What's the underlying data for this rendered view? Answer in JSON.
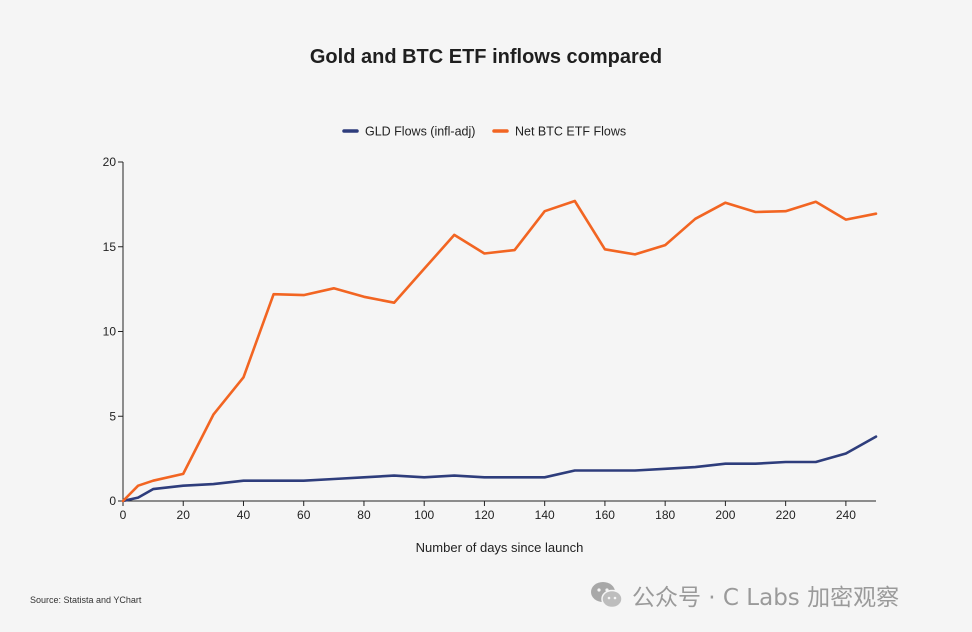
{
  "chart_data": {
    "type": "line",
    "title": "Gold and BTC ETF inflows compared",
    "xlabel": "Number of days since launch",
    "ylabel": "",
    "xlim": [
      0,
      250
    ],
    "ylim": [
      0,
      20
    ],
    "x_ticks": [
      0,
      20,
      40,
      60,
      80,
      100,
      120,
      140,
      160,
      180,
      200,
      220,
      240
    ],
    "y_ticks": [
      0,
      5,
      10,
      15,
      20
    ],
    "grid": false,
    "legend_position": "top-center",
    "series": [
      {
        "name": "GLD Flows (infl-adj)",
        "color": "#2e3d7c",
        "x": [
          0,
          5,
          10,
          20,
          30,
          40,
          50,
          60,
          70,
          80,
          90,
          100,
          110,
          120,
          130,
          140,
          150,
          160,
          170,
          180,
          190,
          200,
          210,
          220,
          230,
          240,
          250
        ],
        "values": [
          0,
          0.2,
          0.7,
          0.9,
          1.0,
          1.2,
          1.2,
          1.2,
          1.3,
          1.4,
          1.5,
          1.4,
          1.5,
          1.4,
          1.4,
          1.4,
          1.8,
          1.8,
          1.8,
          1.9,
          2.0,
          2.2,
          2.2,
          2.3,
          2.3,
          2.8,
          3.8
        ]
      },
      {
        "name": "Net BTC ETF Flows",
        "color": "#f26522",
        "x": [
          0,
          5,
          10,
          20,
          30,
          40,
          50,
          60,
          70,
          80,
          90,
          100,
          110,
          120,
          130,
          140,
          150,
          160,
          170,
          180,
          190,
          200,
          210,
          220,
          230,
          240,
          250
        ],
        "values": [
          0,
          0.9,
          1.2,
          1.6,
          5.1,
          7.3,
          12.2,
          12.15,
          12.55,
          12.05,
          11.7,
          13.7,
          15.7,
          14.6,
          14.8,
          17.1,
          17.7,
          14.85,
          14.55,
          15.1,
          16.65,
          17.6,
          17.05,
          17.1,
          17.65,
          16.6,
          16.95
        ]
      }
    ]
  },
  "source_text": "Source: Statista and YChart",
  "watermark": {
    "text": "公众号 · C Labs 加密观察",
    "icon": "wechat-icon"
  }
}
